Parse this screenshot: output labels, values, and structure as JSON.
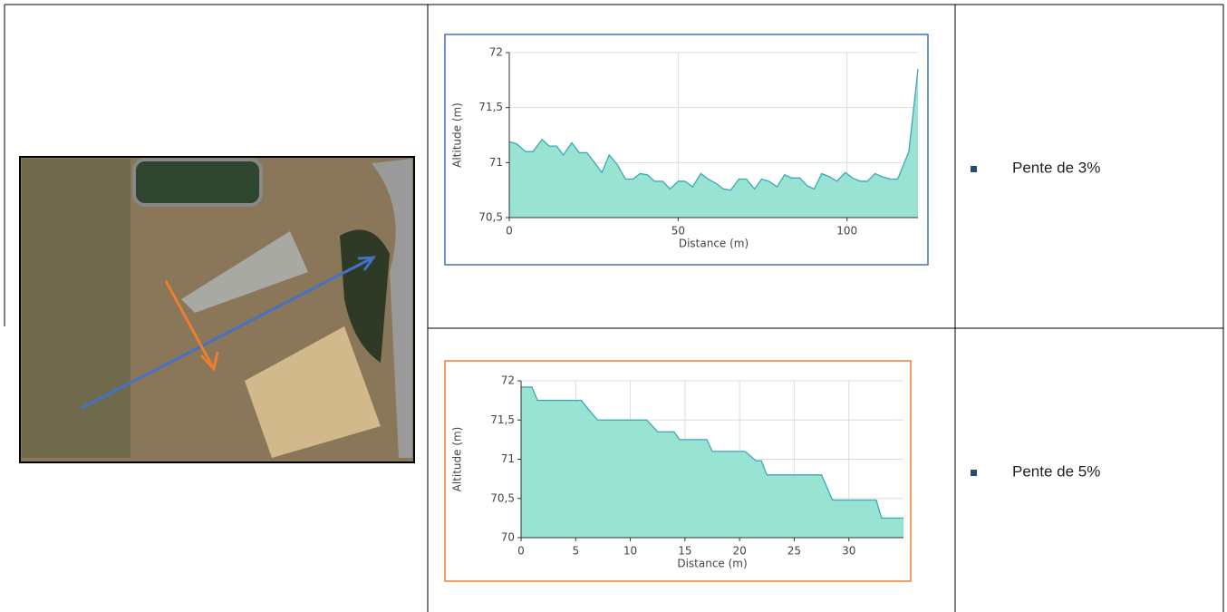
{
  "chart_data": [
    {
      "type": "area",
      "xlabel": "Distance (m)",
      "ylabel": "Altitude (m)",
      "color": "#99e3d3",
      "line_color": "#3ba7b8",
      "frame_color": "#4472c4",
      "grid": true,
      "x": [
        0,
        2.2,
        4.8,
        7,
        9.7,
        11.8,
        14,
        16,
        18.5,
        20.7,
        23,
        25,
        27.4,
        29.6,
        32,
        34.4,
        36.6,
        38.7,
        40.9,
        43,
        45.4,
        47.6,
        50,
        52,
        54.3,
        56.7,
        58.9,
        61.3,
        63.4,
        65.6,
        68,
        70.2,
        72.6,
        74.7,
        76.9,
        79.3,
        81.5,
        83.6,
        86,
        88.2,
        90.3,
        92.5,
        94.9,
        97,
        99.5,
        101.6,
        104,
        106,
        108.3,
        110.5,
        112.8,
        115,
        118.3,
        121
      ],
      "values": [
        71.19,
        71.17,
        71.1,
        71.1,
        71.21,
        71.15,
        71.15,
        71.07,
        71.18,
        71.09,
        71.09,
        71.01,
        70.91,
        71.07,
        70.98,
        70.85,
        70.85,
        70.9,
        70.89,
        70.83,
        70.83,
        70.76,
        70.83,
        70.83,
        70.78,
        70.9,
        70.85,
        70.81,
        70.76,
        70.75,
        70.85,
        70.85,
        70.76,
        70.85,
        70.83,
        70.78,
        70.89,
        70.86,
        70.86,
        70.79,
        70.76,
        70.9,
        70.87,
        70.83,
        70.91,
        70.86,
        70.83,
        70.83,
        70.9,
        70.87,
        70.85,
        70.85,
        71.1,
        71.85
      ],
      "xlim": [
        0,
        121
      ],
      "xticks": [
        0,
        50,
        100
      ],
      "ylim": [
        70.5,
        72
      ],
      "yticks": [
        {
          "value": 70.5,
          "label": "70,5"
        },
        71,
        {
          "value": 71.5,
          "label": "71,5"
        },
        72
      ]
    },
    {
      "type": "area",
      "xlabel": "Distance (m)",
      "ylabel": "Altitude (m)",
      "color": "#99e3d3",
      "line_color": "#3ba7b8",
      "frame_color": "#ed7d31",
      "grid": true,
      "x": [
        0,
        1,
        1.5,
        5.5,
        6.5,
        7,
        11.5,
        12.5,
        14,
        14.5,
        17,
        17.5,
        20.5,
        21.5,
        22,
        22.5,
        27.5,
        28.5,
        32.5,
        33,
        35
      ],
      "values": [
        71.92,
        71.92,
        71.75,
        71.75,
        71.58,
        71.5,
        71.5,
        71.35,
        71.35,
        71.25,
        71.25,
        71.1,
        71.1,
        70.98,
        70.98,
        70.8,
        70.8,
        70.48,
        70.48,
        70.25,
        70.25
      ],
      "xlim": [
        0,
        35
      ],
      "xticks": [
        0,
        5,
        10,
        15,
        20,
        25,
        30
      ],
      "ylim": [
        70,
        72
      ],
      "yticks": [
        70,
        {
          "value": 70.5,
          "label": "70,5"
        },
        71,
        {
          "value": 71.5,
          "label": "71,5"
        },
        72
      ]
    }
  ],
  "notes": [
    "Pente de 3%",
    "Pente de 5%"
  ]
}
